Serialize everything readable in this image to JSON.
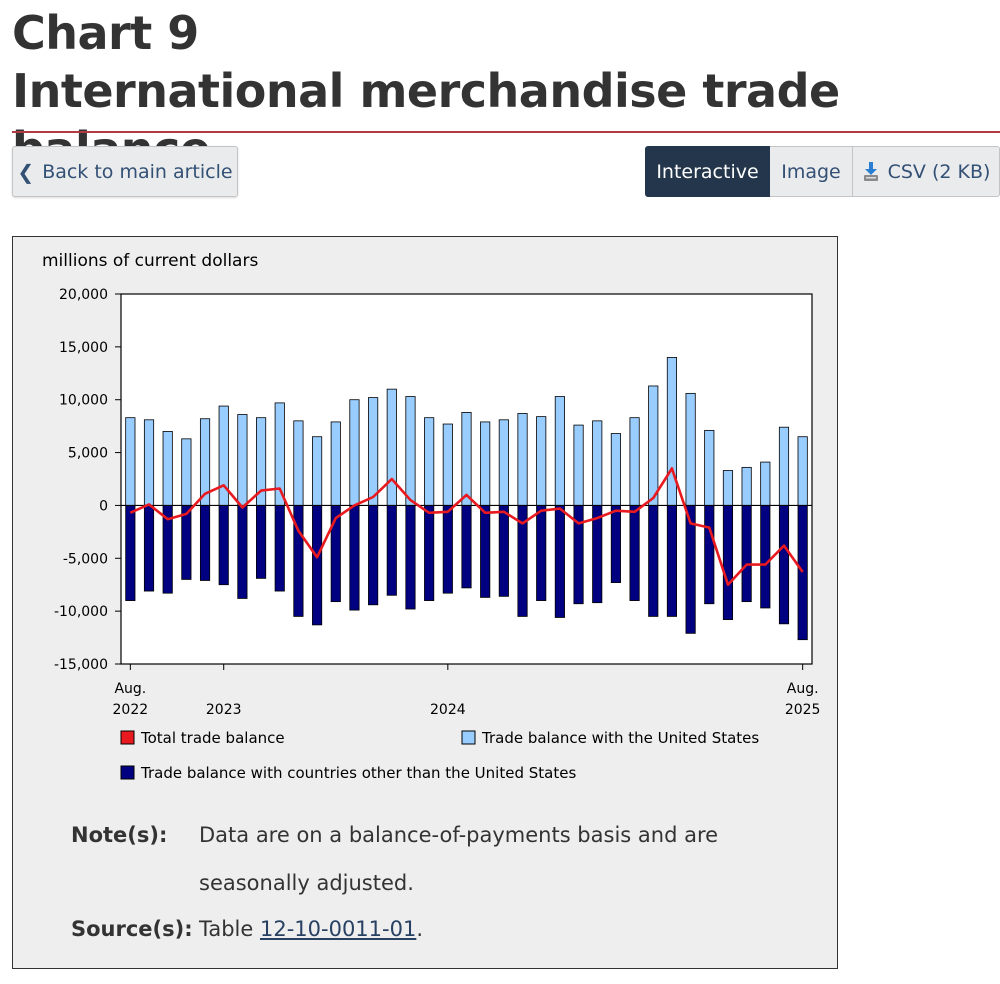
{
  "header": {
    "title_line1": "Chart 9",
    "title_line2": "International merchandise trade balance"
  },
  "toolbar": {
    "back_label": "Back to main article",
    "tabs": [
      "Interactive",
      "Image",
      "CSV (2 KB)"
    ],
    "active_tab": "Interactive"
  },
  "icons": {
    "back": "chevron-left-icon",
    "csv": "download-icon"
  },
  "colors": {
    "accent_rule": "#af3c43",
    "active_tab_bg": "#23364b",
    "total_line": "#e8191f",
    "us_bars": "#99ccff",
    "other_bars": "#000080"
  },
  "chart_data": {
    "type": "bar",
    "unit_label": "millions of current dollars",
    "x_tick_labels": [
      {
        "line1": "Aug.",
        "line2": "2022"
      },
      {
        "line1": "",
        "line2": "2023"
      },
      {
        "line1": "",
        "line2": "2024"
      },
      {
        "line1": "Aug.",
        "line2": "2025"
      }
    ],
    "x_tick_index": [
      0,
      5,
      17,
      36
    ],
    "ylim": [
      -15000,
      20000
    ],
    "yticks": [
      20000,
      15000,
      10000,
      5000,
      0,
      -5000,
      -10000,
      -15000
    ],
    "ytick_labels": [
      "20,000",
      "15,000",
      "10,000",
      "5,000",
      "0",
      "-5,000",
      "-10,000",
      "-15,000"
    ],
    "grid": false,
    "legend_position": "bottom",
    "periods": [
      "2022-08",
      "2022-09",
      "2022-10",
      "2022-11",
      "2022-12",
      "2023-01",
      "2023-02",
      "2023-03",
      "2023-04",
      "2023-05",
      "2023-06",
      "2023-07",
      "2023-08",
      "2023-09",
      "2023-10",
      "2023-11",
      "2023-12",
      "2024-01",
      "2024-02",
      "2024-03",
      "2024-04",
      "2024-05",
      "2024-06",
      "2024-07",
      "2024-08",
      "2024-09",
      "2024-10",
      "2024-11",
      "2024-12",
      "2025-01",
      "2025-02",
      "2025-03",
      "2025-04",
      "2025-05",
      "2025-06",
      "2025-07",
      "2025-08"
    ],
    "series": [
      {
        "name": "Total trade balance",
        "kind": "line",
        "color": "#e8191f",
        "values": [
          -700,
          100,
          -1300,
          -800,
          1100,
          1900,
          -200,
          1400,
          1600,
          -2400,
          -4900,
          -1200,
          0,
          800,
          2500,
          500,
          -700,
          -600,
          1000,
          -700,
          -600,
          -1700,
          -500,
          -300,
          -1700,
          -1200,
          -500,
          -600,
          700,
          3500,
          -1700,
          -2100,
          -7500,
          -5600,
          -5600,
          -3800,
          -6300
        ]
      },
      {
        "name": "Trade balance with the United States",
        "kind": "bar",
        "color": "#99ccff",
        "values": [
          8300,
          8100,
          7000,
          6300,
          8200,
          9400,
          8600,
          8300,
          9700,
          8000,
          6500,
          7900,
          10000,
          10200,
          11000,
          10300,
          8300,
          7700,
          8800,
          7900,
          8100,
          8700,
          8400,
          10300,
          7600,
          8000,
          6800,
          8300,
          11300,
          14000,
          10600,
          7100,
          3300,
          3600,
          4100,
          7400,
          6500
        ]
      },
      {
        "name": "Trade balance with countries other than the United States",
        "kind": "bar",
        "color": "#000080",
        "values": [
          -9000,
          -8100,
          -8300,
          -7000,
          -7100,
          -7500,
          -8800,
          -6900,
          -8100,
          -10500,
          -11300,
          -9100,
          -9900,
          -9400,
          -8500,
          -9800,
          -9000,
          -8300,
          -7800,
          -8700,
          -8600,
          -10500,
          -9000,
          -10600,
          -9300,
          -9200,
          -7300,
          -9000,
          -10500,
          -10500,
          -12100,
          -9300,
          -10800,
          -9100,
          -9700,
          -11200,
          -12700
        ]
      }
    ]
  },
  "notes": {
    "note_label": "Note(s):",
    "note_line1": "Data are on a balance-of-payments basis and are",
    "note_line2": "seasonally adjusted.",
    "source_label": "Source(s):",
    "source_prefix": "Table ",
    "source_link": "12-10-0011-01",
    "source_suffix": "."
  }
}
